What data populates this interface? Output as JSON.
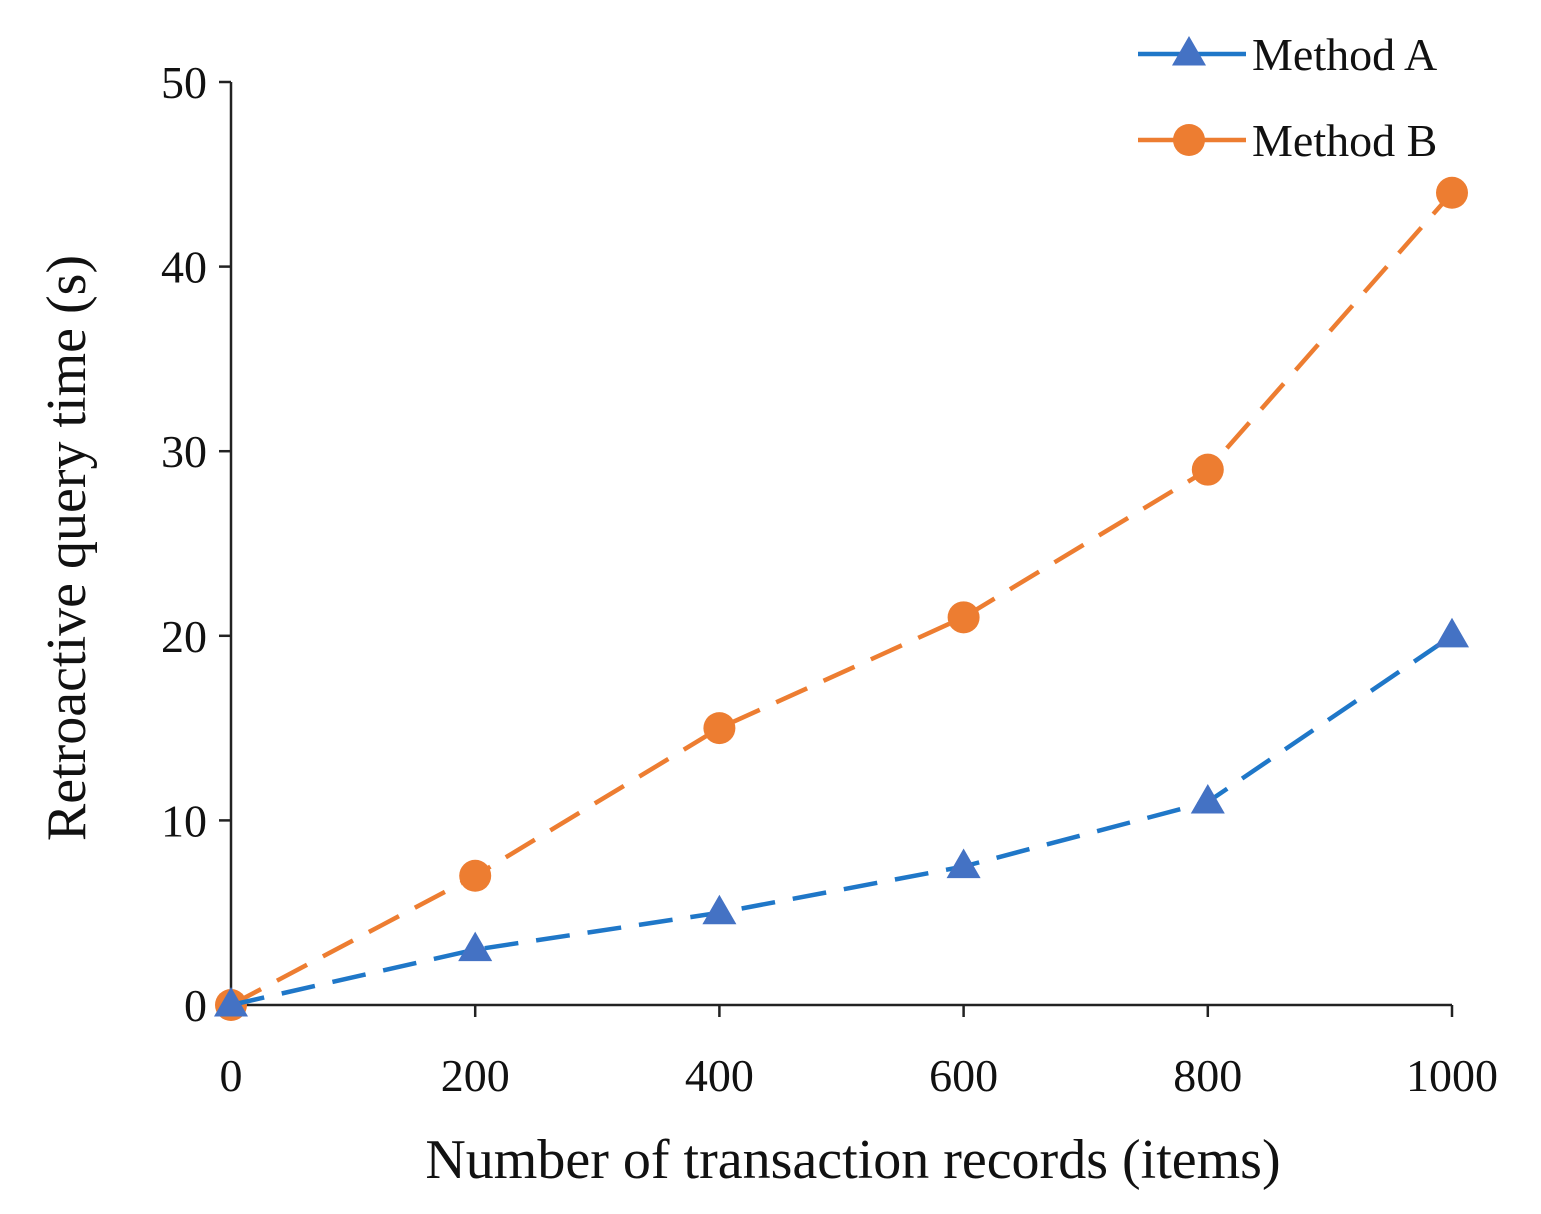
{
  "chart_data": {
    "type": "line",
    "title": "",
    "xlabel": "Number of transaction records (items)",
    "ylabel": "Retroactive query time (s)",
    "x": [
      0,
      200,
      400,
      600,
      800,
      1000
    ],
    "xlim": [
      0,
      1000
    ],
    "ylim": [
      0,
      50
    ],
    "x_ticks": [
      0,
      200,
      400,
      600,
      800,
      1000
    ],
    "y_ticks": [
      0,
      10,
      20,
      30,
      40,
      50
    ],
    "grid": false,
    "legend_position": "top-right",
    "series": [
      {
        "name": "Method A",
        "values": [
          0,
          3,
          5,
          7.5,
          11,
          20
        ],
        "color": "#1f77c8",
        "marker": "triangle",
        "marker_color": "#4472c4",
        "line_style": "dashed"
      },
      {
        "name": "Method B",
        "values": [
          0,
          7,
          15,
          21,
          29,
          44
        ],
        "color": "#ed7d31",
        "marker": "circle",
        "marker_color": "#ed7d31",
        "line_style": "dashed"
      }
    ]
  }
}
